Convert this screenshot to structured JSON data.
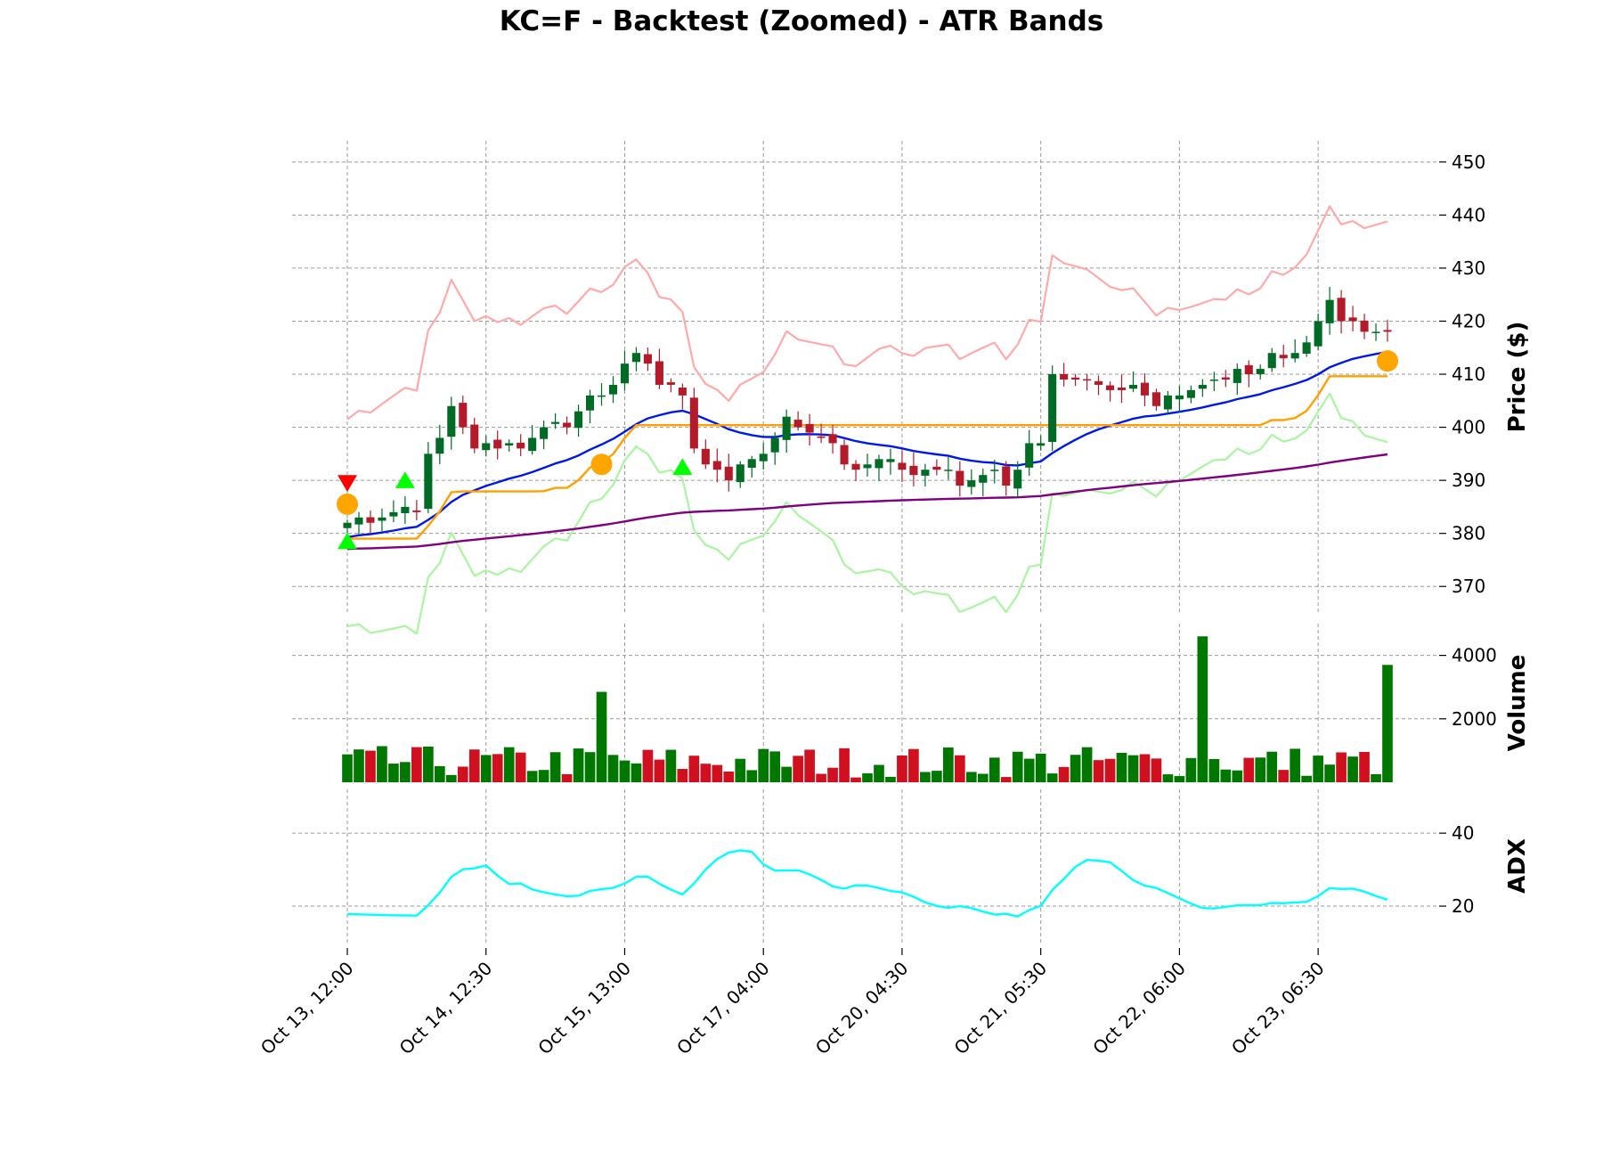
{
  "chart_data": {
    "type": "candlestick",
    "title": "KC=F - Backtest (Zoomed) - ATR Bands",
    "bar_count": 91,
    "x_tick_labels": [
      {
        "index": 0,
        "label": "Oct 13, 12:00"
      },
      {
        "index": 12,
        "label": "Oct 14, 12:30"
      },
      {
        "index": 24,
        "label": "Oct 15, 13:00"
      },
      {
        "index": 36,
        "label": "Oct 17, 04:00"
      },
      {
        "index": 48,
        "label": "Oct 20, 04:30"
      },
      {
        "index": 60,
        "label": "Oct 21, 05:30"
      },
      {
        "index": 72,
        "label": "Oct 22, 06:00"
      },
      {
        "index": 84,
        "label": "Oct 23, 06:30"
      }
    ],
    "panels": {
      "price": {
        "ylabel": "Price ($)",
        "ylim": [
          365,
          454
        ],
        "ticks": [
          370,
          380,
          390,
          400,
          410,
          420,
          430,
          440,
          450
        ]
      },
      "volume": {
        "ylabel": "Volume",
        "ylim": [
          0,
          5000
        ],
        "ticks": [
          2000,
          4000
        ]
      },
      "adx": {
        "ylabel": "ADX",
        "ylim": [
          10,
          52
        ],
        "ticks": [
          20,
          40
        ]
      }
    },
    "close": [
      382,
      383,
      382,
      383,
      384,
      385,
      384,
      395,
      398,
      404,
      400,
      396,
      397,
      396,
      397,
      396,
      398,
      400,
      401,
      400,
      403,
      406,
      406,
      408,
      412,
      414,
      412,
      408,
      408,
      406,
      396,
      393,
      392,
      390,
      393,
      394,
      395,
      398,
      402,
      400,
      399,
      398,
      397,
      393,
      392,
      393,
      394,
      394,
      392,
      391,
      392,
      392,
      392,
      389,
      390,
      391,
      392,
      389,
      392,
      397,
      397,
      410,
      409,
      409,
      409,
      408,
      407,
      407,
      408,
      406,
      404,
      406,
      406,
      407,
      408,
      409,
      409,
      411,
      410,
      411,
      414,
      413,
      414,
      416,
      420,
      424,
      420,
      420,
      418,
      418,
      418
    ],
    "series_colors": {
      "up": "#006b25",
      "down": "#b31b2b",
      "upper_band": "#ffaaaa",
      "lower_band": "#a9f5a0",
      "trailing_stop": "#ffa000",
      "ema_fast": "#0019e6",
      "ema_slow": "#800080",
      "adx": "#00ffff",
      "volume_up": "#007800",
      "volume_down": "#d0101e",
      "marker_sell": "#ff0000",
      "marker_buy": "#00ff00",
      "marker_exit": "#ffa500"
    }
  }
}
